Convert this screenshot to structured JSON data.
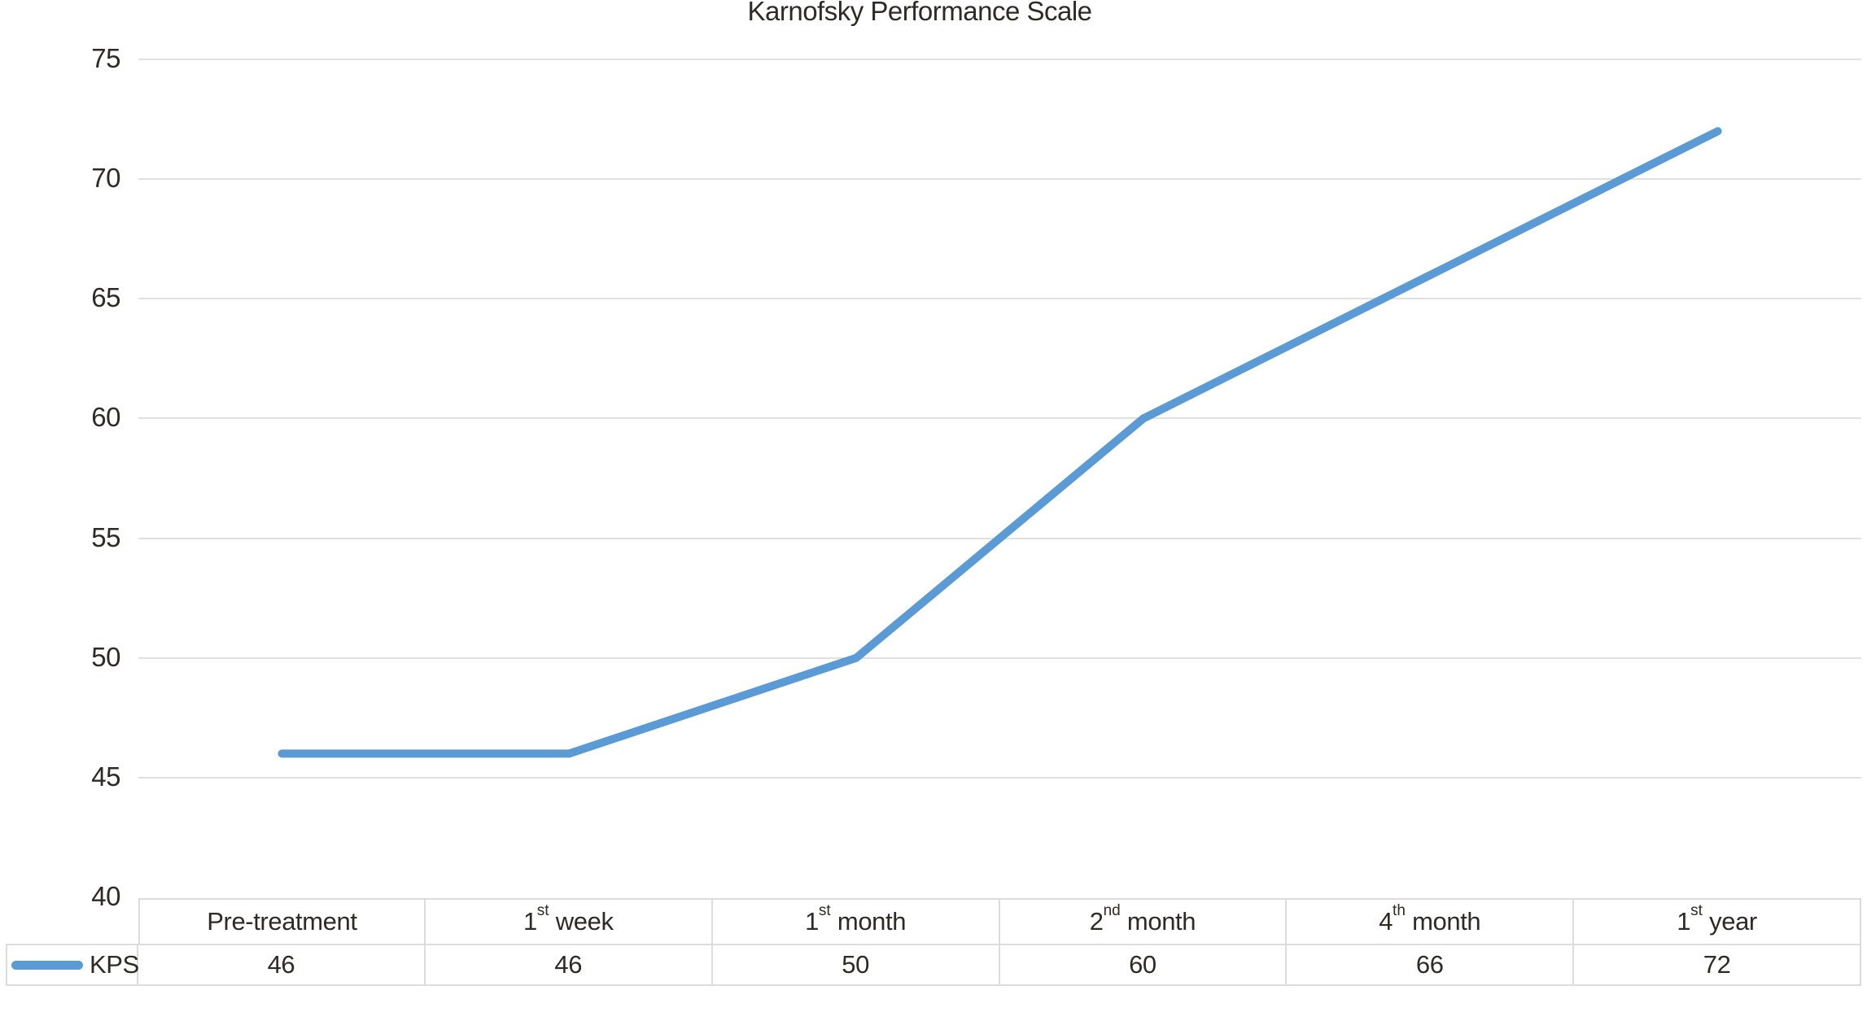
{
  "chart": {
    "title": "Karnofsky Performance Scale"
  },
  "chart_data": {
    "type": "line",
    "title": "Karnofsky Performance Scale",
    "categories": [
      "Pre-treatment",
      "1st week",
      "1st month",
      "2nd month",
      "4th month",
      "1st year"
    ],
    "series": [
      {
        "name": "KPS",
        "values": [
          46,
          46,
          50,
          60,
          66,
          72
        ]
      }
    ],
    "xlabel": "",
    "ylabel": "",
    "ylim": [
      40,
      75
    ],
    "yticks": [
      40,
      45,
      50,
      55,
      60,
      65,
      70,
      75
    ],
    "grid": "horizontal",
    "legend_position": "data-table-left",
    "line_color": "#5b9bd5",
    "gridline_color": "#e0e0e0"
  },
  "table": {
    "legend_label": "KPS",
    "columns": [
      {
        "base": "Pre-treatment",
        "sup": "",
        "rest": ""
      },
      {
        "base": "1",
        "sup": "st",
        "rest": " week"
      },
      {
        "base": "1",
        "sup": "st",
        "rest": " month"
      },
      {
        "base": "2",
        "sup": "nd",
        "rest": " month"
      },
      {
        "base": "4",
        "sup": "th",
        "rest": " month"
      },
      {
        "base": "1",
        "sup": "st",
        "rest": " year"
      }
    ]
  }
}
